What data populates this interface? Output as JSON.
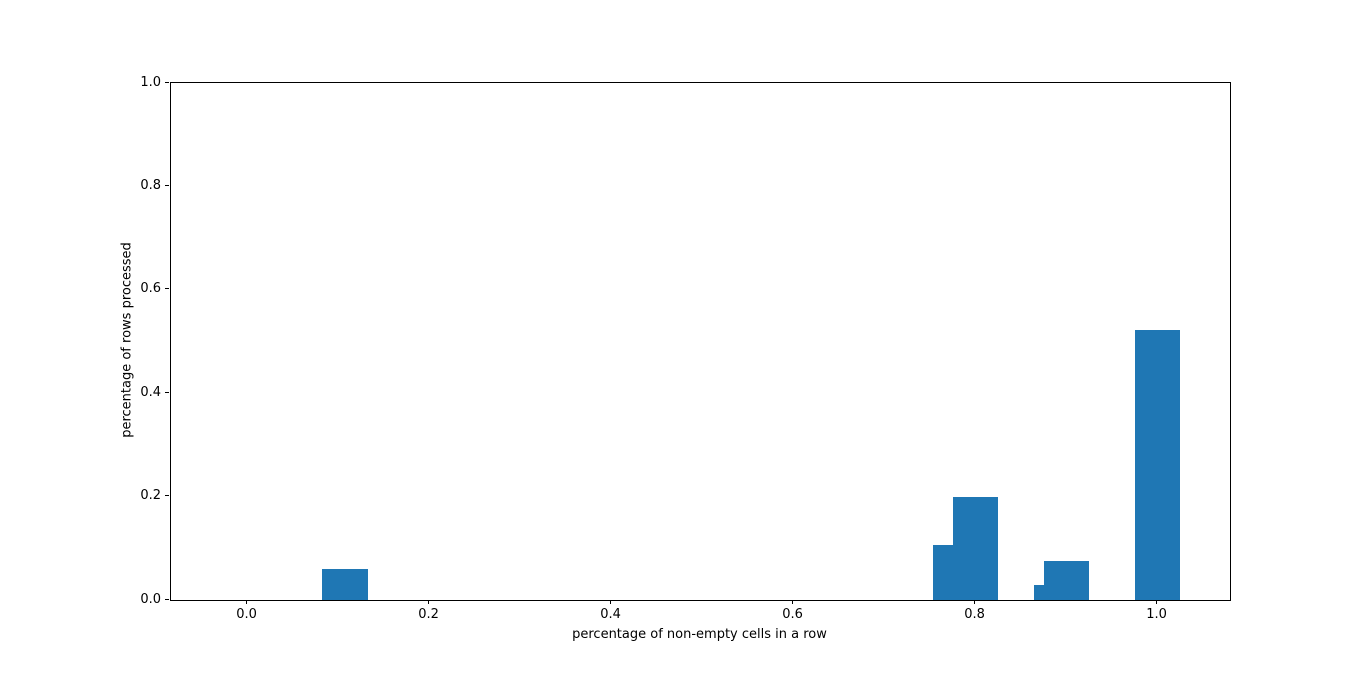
{
  "chart_data": {
    "type": "bar",
    "title": "",
    "xlabel": "percentage of non-empty cells in a row",
    "ylabel": "percentage of rows processed",
    "x": [
      0.107,
      0.778,
      0.8,
      0.889,
      0.9,
      1.0
    ],
    "values": [
      0.06,
      0.106,
      0.199,
      0.03,
      0.075,
      0.523
    ],
    "bar_width": 0.05,
    "bar_color": "#1f77b4",
    "xlim": [
      -0.0841,
      1.0796
    ],
    "ylim": [
      0,
      1.0
    ],
    "x_ticks": [
      0.0,
      0.2,
      0.4,
      0.6,
      0.8,
      1.0
    ],
    "x_tick_labels": [
      "0.0",
      "0.2",
      "0.4",
      "0.6",
      "0.8",
      "1.0"
    ],
    "y_ticks": [
      0.0,
      0.2,
      0.4,
      0.6,
      0.8,
      1.0
    ],
    "y_tick_labels": [
      "0.0",
      "0.2",
      "0.4",
      "0.6",
      "0.8",
      "1.0"
    ],
    "grid": false,
    "legend_position": "none"
  },
  "colors": {
    "bar": "#1f77b4",
    "spine": "#000000",
    "background": "#ffffff",
    "text": "#000000"
  }
}
